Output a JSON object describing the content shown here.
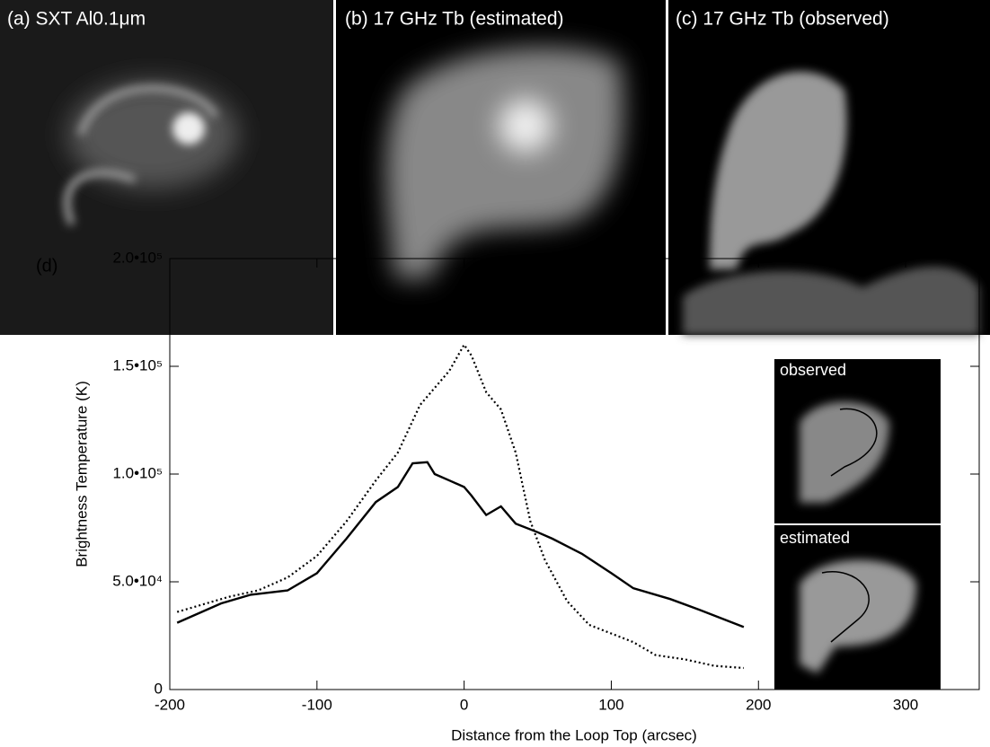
{
  "panels": [
    {
      "title": "(a) SXT Al0.1μm"
    },
    {
      "title": "(b) 17 GHz Tb (estimated)"
    },
    {
      "title": "(c) 17 GHz Tb (observed)"
    }
  ],
  "chart_data": {
    "type": "line",
    "panel_label": "(d)",
    "x_label": "Distance from the Loop Top (arcsec)",
    "y_label": "Brightness Temperature (K)",
    "annotations": [
      "observed",
      "estimated"
    ],
    "xlim": [
      -200,
      350
    ],
    "xticks": [
      -200,
      -100,
      0,
      100,
      200,
      300
    ],
    "ylim": [
      0,
      200000
    ],
    "yticks": [
      0,
      {
        "value": 50000,
        "label": "5.0•10⁴"
      },
      {
        "value": 100000,
        "label": "1.0•10⁵"
      },
      {
        "value": 150000,
        "label": "1.5•10⁵"
      },
      {
        "value": 200000,
        "label": "2.0•10⁵"
      }
    ],
    "grid": false,
    "series": [
      {
        "color": "#000000",
        "dash": "solid",
        "x": [
          -195,
          -165,
          -145,
          -120,
          -100,
          -80,
          -60,
          -45,
          -35,
          -25,
          -20,
          -10,
          0,
          5,
          15,
          25,
          35,
          50,
          60,
          80,
          100,
          115,
          140,
          160,
          190
        ],
        "values": [
          31000,
          40000,
          44000,
          46000,
          54000,
          70000,
          87000,
          94000,
          105000,
          105500,
          100000,
          97000,
          94000,
          90000,
          81000,
          85000,
          77000,
          73000,
          70000,
          63000,
          54000,
          47000,
          42000,
          37000,
          29000
        ]
      },
      {
        "color": "#000000",
        "dash": "dotted",
        "x": [
          -195,
          -160,
          -140,
          -120,
          -100,
          -80,
          -60,
          -45,
          -30,
          -20,
          -10,
          0,
          5,
          15,
          25,
          35,
          45,
          55,
          70,
          85,
          100,
          115,
          130,
          150,
          170,
          190
        ],
        "values": [
          36000,
          43000,
          46000,
          52000,
          62000,
          78000,
          97000,
          110000,
          132000,
          140000,
          148000,
          160000,
          155000,
          138000,
          130000,
          110000,
          78000,
          60000,
          41000,
          30000,
          26000,
          22000,
          16000,
          14000,
          11000,
          10000
        ]
      }
    ]
  }
}
